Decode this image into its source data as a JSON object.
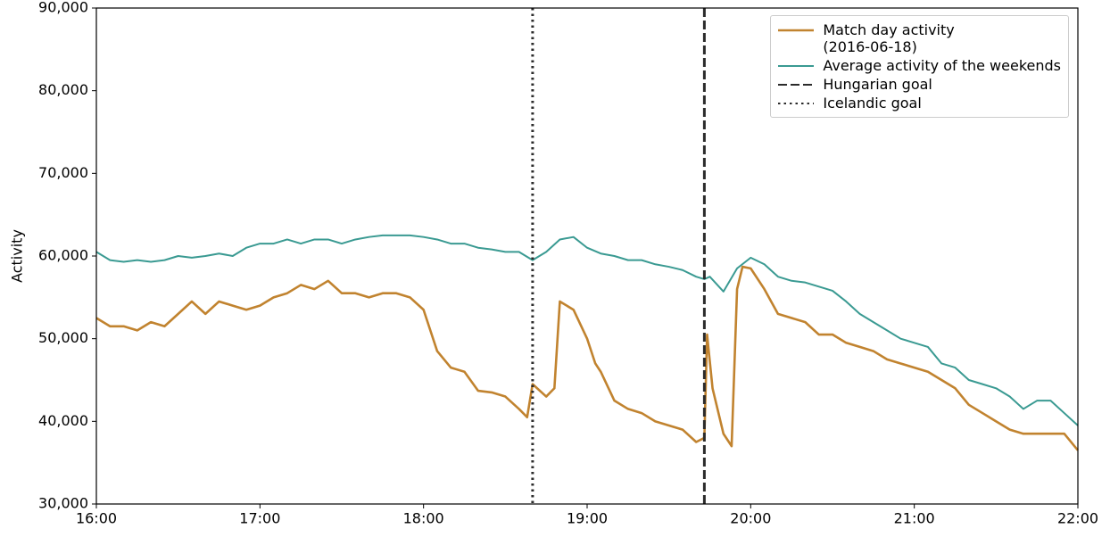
{
  "chart_data": {
    "type": "line",
    "ylabel": "Activity",
    "xlim": [
      960,
      1320
    ],
    "xticks": [
      {
        "value": 960,
        "label": "16:00"
      },
      {
        "value": 1020,
        "label": "17:00"
      },
      {
        "value": 1080,
        "label": "18:00"
      },
      {
        "value": 1140,
        "label": "19:00"
      },
      {
        "value": 1200,
        "label": "20:00"
      },
      {
        "value": 1260,
        "label": "21:00"
      },
      {
        "value": 1320,
        "label": "22:00"
      }
    ],
    "ylim": [
      30000,
      90000
    ],
    "yticks": [
      {
        "value": 30000,
        "label": "30,000"
      },
      {
        "value": 40000,
        "label": "40,000"
      },
      {
        "value": 50000,
        "label": "50,000"
      },
      {
        "value": 60000,
        "label": "60,000"
      },
      {
        "value": 70000,
        "label": "70,000"
      },
      {
        "value": 80000,
        "label": "80,000"
      },
      {
        "value": 90000,
        "label": "90,000"
      }
    ],
    "legend": "upper right",
    "series": [
      {
        "name": "Match day activity\n(2016-06-18)",
        "color": "#c1832f",
        "width": 2.6,
        "x": [
          960,
          965,
          970,
          975,
          980,
          985,
          990,
          995,
          1000,
          1005,
          1010,
          1015,
          1020,
          1025,
          1030,
          1035,
          1040,
          1045,
          1050,
          1055,
          1060,
          1065,
          1070,
          1075,
          1080,
          1085,
          1090,
          1095,
          1100,
          1105,
          1110,
          1115,
          1118,
          1120,
          1125,
          1128,
          1130,
          1135,
          1140,
          1143,
          1145,
          1150,
          1155,
          1160,
          1165,
          1170,
          1175,
          1180,
          1183,
          1184,
          1186,
          1190,
          1193,
          1195,
          1197,
          1200,
          1205,
          1210,
          1215,
          1220,
          1225,
          1230,
          1235,
          1240,
          1245,
          1250,
          1255,
          1260,
          1265,
          1270,
          1275,
          1280,
          1285,
          1290,
          1295,
          1300,
          1305,
          1310,
          1315,
          1320
        ],
        "values": [
          52500,
          51500,
          51500,
          51000,
          52000,
          51500,
          53000,
          54500,
          53000,
          54500,
          54000,
          53500,
          54000,
          55000,
          55500,
          56500,
          56000,
          57000,
          55500,
          55500,
          55000,
          55500,
          55500,
          55000,
          53500,
          48500,
          46500,
          46000,
          43700,
          43500,
          43000,
          41500,
          40500,
          44500,
          43000,
          44000,
          54500,
          53500,
          50000,
          47000,
          46000,
          42500,
          41500,
          41000,
          40000,
          39500,
          39000,
          37500,
          38000,
          50500,
          44000,
          38500,
          37000,
          56000,
          58700,
          58500,
          56000,
          53000,
          52500,
          52000,
          50500,
          50500,
          49500,
          49000,
          48500,
          47500,
          47000,
          46500,
          46000,
          45000,
          44000,
          42000,
          41000,
          40000,
          39000,
          38500,
          38500,
          38500,
          38500,
          36500
        ]
      },
      {
        "name": "Average activity of the weekends",
        "color": "#3a9a92",
        "width": 2,
        "x": [
          960,
          965,
          970,
          975,
          980,
          985,
          990,
          995,
          1000,
          1005,
          1010,
          1015,
          1020,
          1025,
          1030,
          1035,
          1040,
          1045,
          1050,
          1055,
          1060,
          1065,
          1070,
          1075,
          1080,
          1085,
          1090,
          1095,
          1100,
          1105,
          1110,
          1115,
          1120,
          1125,
          1130,
          1135,
          1140,
          1145,
          1150,
          1155,
          1160,
          1165,
          1170,
          1175,
          1180,
          1183,
          1185,
          1190,
          1195,
          1200,
          1205,
          1210,
          1215,
          1220,
          1225,
          1230,
          1235,
          1240,
          1245,
          1250,
          1255,
          1260,
          1265,
          1270,
          1275,
          1280,
          1285,
          1290,
          1295,
          1300,
          1305,
          1310,
          1315,
          1320
        ],
        "values": [
          60500,
          59500,
          59300,
          59500,
          59300,
          59500,
          60000,
          59800,
          60000,
          60300,
          60000,
          61000,
          61500,
          61500,
          62000,
          61500,
          62000,
          62000,
          61500,
          62000,
          62300,
          62500,
          62500,
          62500,
          62300,
          62000,
          61500,
          61500,
          61000,
          60800,
          60500,
          60500,
          59500,
          60500,
          62000,
          62300,
          61000,
          60300,
          60000,
          59500,
          59500,
          59000,
          58700,
          58300,
          57500,
          57200,
          57500,
          55700,
          58500,
          59800,
          59000,
          57500,
          57000,
          56800,
          56300,
          55800,
          54500,
          53000,
          52000,
          51000,
          50000,
          49500,
          49000,
          47000,
          46500,
          45000,
          44500,
          44000,
          43000,
          41500,
          42500,
          42500,
          41000,
          39500
        ]
      }
    ],
    "vlines": [
      {
        "name": "Hungarian goal",
        "x": 1183,
        "style": "dashed"
      },
      {
        "name": "Icelandic goal",
        "x": 1120,
        "style": "dotted"
      }
    ],
    "vline_color": "#2b2b2b"
  }
}
